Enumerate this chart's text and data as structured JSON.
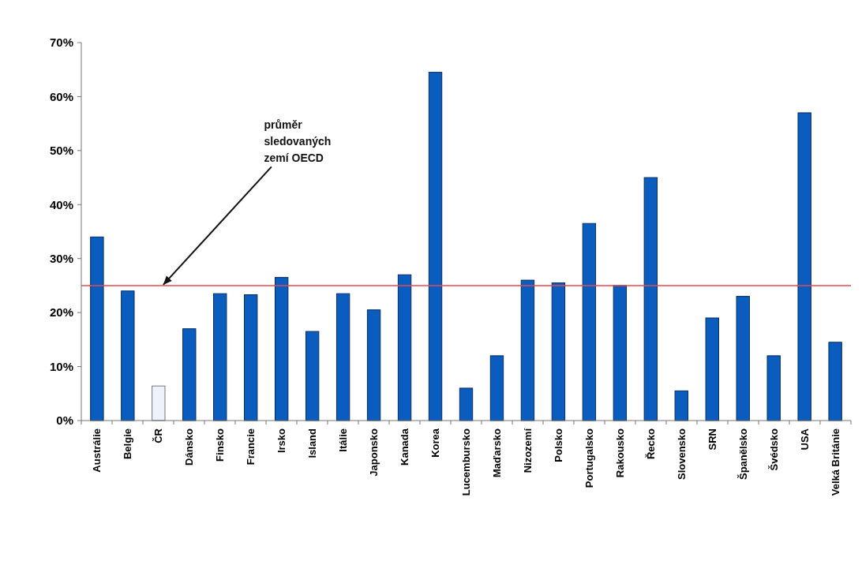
{
  "chart_data": {
    "type": "bar",
    "categories": [
      "Austrálie",
      "Belgie",
      "ČR",
      "Dánsko",
      "Finsko",
      "Francie",
      "Irsko",
      "Island",
      "Itálie",
      "Japonsko",
      "Kanada",
      "Korea",
      "Lucembursko",
      "Maďarsko",
      "Nizozemí",
      "Polsko",
      "Portugalsko",
      "Rakousko",
      "Řecko",
      "Slovensko",
      "SRN",
      "Španělsko",
      "Švédsko",
      "USA",
      "Velká Británie"
    ],
    "values": [
      34,
      24,
      6.4,
      17,
      23.5,
      23.3,
      26.5,
      16.5,
      23.5,
      20.5,
      27,
      64.5,
      6,
      12,
      26,
      25.5,
      36.5,
      25,
      45,
      5.5,
      19,
      23,
      12,
      57,
      14.5
    ],
    "colors": [
      "#0a5cbf",
      "#0a5cbf",
      "#eef2fa",
      "#0a5cbf",
      "#0a5cbf",
      "#0a5cbf",
      "#0a5cbf",
      "#0a5cbf",
      "#0a5cbf",
      "#0a5cbf",
      "#0a5cbf",
      "#0a5cbf",
      "#0a5cbf",
      "#0a5cbf",
      "#0a5cbf",
      "#0a5cbf",
      "#0a5cbf",
      "#0a5cbf",
      "#0a5cbf",
      "#0a5cbf",
      "#0a5cbf",
      "#0a5cbf",
      "#0a5cbf",
      "#0a5cbf",
      "#0a5cbf"
    ],
    "ylim": [
      0,
      70
    ],
    "yticks": [
      {
        "value": 0,
        "label": "0%"
      },
      {
        "value": 10,
        "label": "10%"
      },
      {
        "value": 20,
        "label": "20%"
      },
      {
        "value": 30,
        "label": "30%"
      },
      {
        "value": 40,
        "label": "40%"
      },
      {
        "value": 50,
        "label": "50%"
      },
      {
        "value": 60,
        "label": "60%"
      },
      {
        "value": 70,
        "label": "70%"
      }
    ],
    "grid": false,
    "ref_lines": [
      {
        "axis": "y",
        "value": 25,
        "label": "průměr\nsledovaných\nzemí OECD",
        "color": "#e8474f"
      }
    ]
  }
}
